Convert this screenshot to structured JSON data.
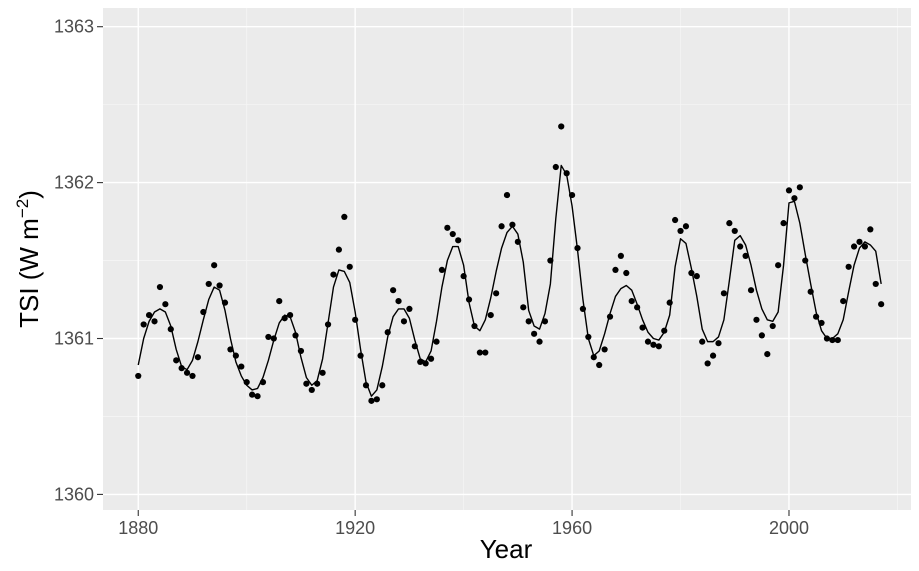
{
  "chart_data": {
    "type": "line",
    "xlabel": "Year",
    "ylabel": "TSI (W m",
    "ylabel_sup": "−2",
    "ylabel_close": ")",
    "xlim": [
      1873.5,
      2022.5
    ],
    "ylim": [
      1359.9,
      1363.12
    ],
    "x_ticks": [
      1880,
      1920,
      1960,
      2000
    ],
    "x_tick_labels": [
      "1880",
      "1920",
      "1960",
      "2000"
    ],
    "y_ticks": [
      1360,
      1361,
      1362,
      1363
    ],
    "y_tick_labels": [
      "1360",
      "1361",
      "1362",
      "1363"
    ],
    "grid": true,
    "legend": "none",
    "series": [
      {
        "kind": "points",
        "x": [
          1880,
          1881,
          1882,
          1883,
          1884,
          1885,
          1886,
          1887,
          1888,
          1889,
          1890,
          1891,
          1892,
          1893,
          1894,
          1895,
          1896,
          1897,
          1898,
          1899,
          1900,
          1901,
          1902,
          1903,
          1904,
          1905,
          1906,
          1907,
          1908,
          1909,
          1910,
          1911,
          1912,
          1913,
          1914,
          1915,
          1916,
          1917,
          1918,
          1919,
          1920,
          1921,
          1922,
          1923,
          1924,
          1925,
          1926,
          1927,
          1928,
          1929,
          1930,
          1931,
          1932,
          1933,
          1934,
          1935,
          1936,
          1937,
          1938,
          1939,
          1940,
          1941,
          1942,
          1943,
          1944,
          1945,
          1946,
          1947,
          1948,
          1949,
          1950,
          1951,
          1952,
          1953,
          1954,
          1955,
          1956,
          1957,
          1958,
          1959,
          1960,
          1961,
          1962,
          1963,
          1964,
          1965,
          1966,
          1967,
          1968,
          1969,
          1970,
          1971,
          1972,
          1973,
          1974,
          1975,
          1976,
          1977,
          1978,
          1979,
          1980,
          1981,
          1982,
          1983,
          1984,
          1985,
          1986,
          1987,
          1988,
          1989,
          1990,
          1991,
          1992,
          1993,
          1994,
          1995,
          1996,
          1997,
          1998,
          1999,
          2000,
          2001,
          2002,
          2003,
          2004,
          2005,
          2006,
          2007,
          2008,
          2009,
          2010,
          2011,
          2012,
          2013,
          2014,
          2015,
          2016,
          2017
        ],
        "y": [
          1360.76,
          1361.09,
          1361.15,
          1361.11,
          1361.33,
          1361.22,
          1361.06,
          1360.86,
          1360.81,
          1360.78,
          1360.76,
          1360.88,
          1361.17,
          1361.35,
          1361.47,
          1361.34,
          1361.23,
          1360.93,
          1360.89,
          1360.82,
          1360.72,
          1360.64,
          1360.63,
          1360.72,
          1361.01,
          1361.0,
          1361.24,
          1361.13,
          1361.15,
          1361.02,
          1360.92,
          1360.71,
          1360.67,
          1360.71,
          1360.78,
          1361.09,
          1361.41,
          1361.57,
          1361.78,
          1361.46,
          1361.12,
          1360.89,
          1360.7,
          1360.6,
          1360.61,
          1360.7,
          1361.04,
          1361.31,
          1361.24,
          1361.11,
          1361.19,
          1360.95,
          1360.85,
          1360.84,
          1360.87,
          1360.98,
          1361.44,
          1361.71,
          1361.67,
          1361.63,
          1361.4,
          1361.25,
          1361.08,
          1360.91,
          1360.91,
          1361.15,
          1361.29,
          1361.72,
          1361.92,
          1361.73,
          1361.62,
          1361.2,
          1361.11,
          1361.03,
          1360.98,
          1361.11,
          1361.5,
          1362.1,
          1362.36,
          1362.06,
          1361.92,
          1361.58,
          1361.19,
          1361.01,
          1360.88,
          1360.83,
          1360.93,
          1361.14,
          1361.44,
          1361.53,
          1361.42,
          1361.24,
          1361.2,
          1361.07,
          1360.98,
          1360.96,
          1360.95,
          1361.05,
          1361.23,
          1361.76,
          1361.69,
          1361.72,
          1361.42,
          1361.4,
          1360.98,
          1360.84,
          1360.89,
          1360.97,
          1361.29,
          1361.74,
          1361.69,
          1361.59,
          1361.53,
          1361.31,
          1361.12,
          1361.02,
          1360.9,
          1361.08,
          1361.47,
          1361.74,
          1361.95,
          1361.9,
          1361.97,
          1361.5,
          1361.3,
          1361.14,
          1361.1,
          1361.0,
          1360.99,
          1360.99,
          1361.24,
          1361.46,
          1361.59,
          1361.62,
          1361.59,
          1361.7,
          1361.35,
          1361.22
        ]
      },
      {
        "kind": "line",
        "x": [
          1880,
          1881,
          1882,
          1883,
          1884,
          1885,
          1886,
          1887,
          1888,
          1889,
          1890,
          1891,
          1892,
          1893,
          1894,
          1895,
          1896,
          1897,
          1898,
          1899,
          1900,
          1901,
          1902,
          1903,
          1904,
          1905,
          1906,
          1907,
          1908,
          1909,
          1910,
          1911,
          1912,
          1913,
          1914,
          1915,
          1916,
          1917,
          1918,
          1919,
          1920,
          1921,
          1922,
          1923,
          1924,
          1925,
          1926,
          1927,
          1928,
          1929,
          1930,
          1931,
          1932,
          1933,
          1934,
          1935,
          1936,
          1937,
          1938,
          1939,
          1940,
          1941,
          1942,
          1943,
          1944,
          1945,
          1946,
          1947,
          1948,
          1949,
          1950,
          1951,
          1952,
          1953,
          1954,
          1955,
          1956,
          1957,
          1958,
          1959,
          1960,
          1961,
          1962,
          1963,
          1964,
          1965,
          1966,
          1967,
          1968,
          1969,
          1970,
          1971,
          1972,
          1973,
          1974,
          1975,
          1976,
          1977,
          1978,
          1979,
          1980,
          1981,
          1982,
          1983,
          1984,
          1985,
          1986,
          1987,
          1988,
          1989,
          1990,
          1991,
          1992,
          1993,
          1994,
          1995,
          1996,
          1997,
          1998,
          1999,
          2000,
          2001,
          2002,
          2003,
          2004,
          2005,
          2006,
          2007,
          2008,
          2009,
          2010,
          2011,
          2012,
          2013,
          2014,
          2015,
          2016,
          2017
        ],
        "y": [
          1360.83,
          1361.0,
          1361.11,
          1361.17,
          1361.19,
          1361.17,
          1361.08,
          1360.93,
          1360.82,
          1360.8,
          1360.86,
          1360.98,
          1361.12,
          1361.25,
          1361.33,
          1361.31,
          1361.18,
          1361.0,
          1360.85,
          1360.76,
          1360.7,
          1360.67,
          1360.68,
          1360.75,
          1360.86,
          1360.99,
          1361.1,
          1361.15,
          1361.14,
          1361.04,
          1360.88,
          1360.75,
          1360.7,
          1360.73,
          1360.87,
          1361.1,
          1361.33,
          1361.44,
          1361.43,
          1361.36,
          1361.17,
          1360.93,
          1360.72,
          1360.63,
          1360.67,
          1360.82,
          1361.01,
          1361.14,
          1361.19,
          1361.19,
          1361.13,
          1360.99,
          1360.87,
          1360.85,
          1360.92,
          1361.11,
          1361.33,
          1361.5,
          1361.59,
          1361.59,
          1361.47,
          1361.23,
          1361.08,
          1361.05,
          1361.12,
          1361.26,
          1361.43,
          1361.58,
          1361.68,
          1361.72,
          1361.67,
          1361.49,
          1361.18,
          1361.08,
          1361.06,
          1361.16,
          1361.35,
          1361.77,
          1362.11,
          1362.05,
          1361.85,
          1361.57,
          1361.25,
          1361.0,
          1360.89,
          1360.92,
          1361.03,
          1361.16,
          1361.27,
          1361.32,
          1361.34,
          1361.31,
          1361.22,
          1361.12,
          1361.04,
          1361.0,
          1360.99,
          1361.04,
          1361.15,
          1361.46,
          1361.64,
          1361.61,
          1361.45,
          1361.27,
          1361.06,
          1360.98,
          1360.98,
          1361.01,
          1361.12,
          1361.37,
          1361.63,
          1361.66,
          1361.6,
          1361.47,
          1361.31,
          1361.19,
          1361.12,
          1361.11,
          1361.17,
          1361.47,
          1361.87,
          1361.88,
          1361.74,
          1361.54,
          1361.35,
          1361.17,
          1361.05,
          1361.0,
          1361.0,
          1361.03,
          1361.12,
          1361.3,
          1361.47,
          1361.58,
          1361.62,
          1361.6,
          1361.56,
          1361.35
        ]
      }
    ]
  }
}
